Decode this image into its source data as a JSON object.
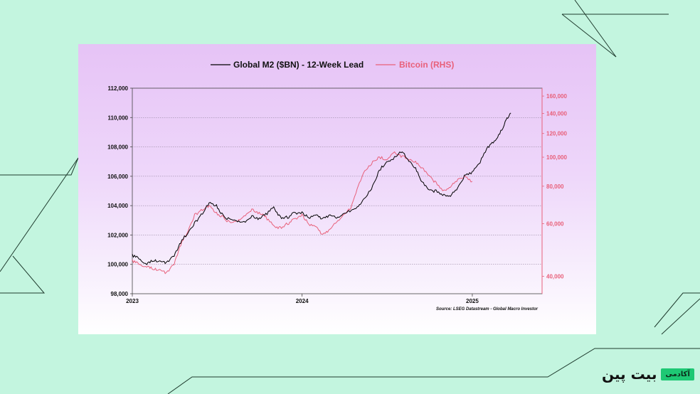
{
  "chart_data": {
    "type": "line",
    "title": "",
    "legend": {
      "position": "top-center",
      "entries": [
        {
          "label": "Global M2 ($BN) - 12-Week Lead",
          "color": "#000000"
        },
        {
          "label": "Bitcoin (RHS)",
          "color": "#e8607a"
        }
      ]
    },
    "y_left": {
      "ylim": [
        98000,
        112000
      ],
      "ticks": [
        "98,000",
        "100,000",
        "102,000",
        "104,000",
        "106,000",
        "108,000",
        "110,000",
        "112,000"
      ],
      "tick_values": [
        98000,
        100000,
        102000,
        104000,
        106000,
        108000,
        110000,
        112000
      ]
    },
    "y_right": {
      "scale": "log",
      "ylim": [
        35000,
        170000
      ],
      "ticks": [
        "40,000",
        "60,000",
        "80,000",
        "100,000",
        "120,000",
        "140,000",
        "160,000"
      ],
      "tick_values": [
        40000,
        60000,
        80000,
        100000,
        120000,
        140000,
        160000
      ],
      "color": "#e8607a"
    },
    "x": {
      "xlim": [
        "2023-01-01",
        "2025-05-31"
      ],
      "tick_labels": [
        "2023",
        "2024",
        "2025"
      ],
      "tick_dates": [
        "2023-01-01",
        "2024-01-01",
        "2025-01-01"
      ]
    },
    "grid": true,
    "series": [
      {
        "name": "Global M2 ($BN) - 12-Week Lead",
        "axis": "left",
        "color": "#000000",
        "points": [
          [
            "2023-01-01",
            100600
          ],
          [
            "2023-01-15",
            100400
          ],
          [
            "2023-02-01",
            100000
          ],
          [
            "2023-02-15",
            100300
          ],
          [
            "2023-03-01",
            100200
          ],
          [
            "2023-03-15",
            100100
          ],
          [
            "2023-04-01",
            100600
          ],
          [
            "2023-04-15",
            101500
          ],
          [
            "2023-05-01",
            102200
          ],
          [
            "2023-05-15",
            102800
          ],
          [
            "2023-06-01",
            103500
          ],
          [
            "2023-06-15",
            104200
          ],
          [
            "2023-07-01",
            104000
          ],
          [
            "2023-07-15",
            103300
          ],
          [
            "2023-08-01",
            103000
          ],
          [
            "2023-08-15",
            102900
          ],
          [
            "2023-09-01",
            102900
          ],
          [
            "2023-09-15",
            103300
          ],
          [
            "2023-10-01",
            103100
          ],
          [
            "2023-10-15",
            103400
          ],
          [
            "2023-11-01",
            103900
          ],
          [
            "2023-11-15",
            103200
          ],
          [
            "2023-12-01",
            103200
          ],
          [
            "2023-12-15",
            103500
          ],
          [
            "2024-01-01",
            103500
          ],
          [
            "2024-01-15",
            103200
          ],
          [
            "2024-02-01",
            103300
          ],
          [
            "2024-02-15",
            103100
          ],
          [
            "2024-03-01",
            103300
          ],
          [
            "2024-03-15",
            103200
          ],
          [
            "2024-04-01",
            103400
          ],
          [
            "2024-04-15",
            103700
          ],
          [
            "2024-05-01",
            103900
          ],
          [
            "2024-05-15",
            104500
          ],
          [
            "2024-06-01",
            105300
          ],
          [
            "2024-06-15",
            106400
          ],
          [
            "2024-07-01",
            107000
          ],
          [
            "2024-07-15",
            107200
          ],
          [
            "2024-08-01",
            107700
          ],
          [
            "2024-08-15",
            107200
          ],
          [
            "2024-09-01",
            106500
          ],
          [
            "2024-09-15",
            105600
          ],
          [
            "2024-10-01",
            105000
          ],
          [
            "2024-10-15",
            105000
          ],
          [
            "2024-11-01",
            104700
          ],
          [
            "2024-11-15",
            104700
          ],
          [
            "2024-12-01",
            105200
          ],
          [
            "2024-12-15",
            106000
          ],
          [
            "2025-01-01",
            106300
          ],
          [
            "2025-01-15",
            106800
          ],
          [
            "2025-02-01",
            107900
          ],
          [
            "2025-02-15",
            108300
          ],
          [
            "2025-03-01",
            108900
          ],
          [
            "2025-03-15",
            109800
          ],
          [
            "2025-03-25",
            110300
          ]
        ]
      },
      {
        "name": "Bitcoin (RHS)",
        "axis": "right",
        "color": "#e8607a",
        "points": [
          [
            "2023-01-01",
            45000
          ],
          [
            "2023-01-15",
            44000
          ],
          [
            "2023-02-01",
            43000
          ],
          [
            "2023-02-15",
            42500
          ],
          [
            "2023-03-01",
            42000
          ],
          [
            "2023-03-15",
            41000
          ],
          [
            "2023-04-01",
            44000
          ],
          [
            "2023-04-15",
            51000
          ],
          [
            "2023-05-01",
            57000
          ],
          [
            "2023-05-15",
            64000
          ],
          [
            "2023-06-01",
            67000
          ],
          [
            "2023-06-15",
            69000
          ],
          [
            "2023-07-01",
            65000
          ],
          [
            "2023-07-15",
            63000
          ],
          [
            "2023-08-01",
            60000
          ],
          [
            "2023-08-15",
            61000
          ],
          [
            "2023-09-01",
            64000
          ],
          [
            "2023-09-15",
            67000
          ],
          [
            "2023-10-01",
            65000
          ],
          [
            "2023-10-15",
            63000
          ],
          [
            "2023-11-01",
            59000
          ],
          [
            "2023-11-15",
            58000
          ],
          [
            "2023-12-01",
            60000
          ],
          [
            "2023-12-15",
            62000
          ],
          [
            "2024-01-01",
            64000
          ],
          [
            "2024-01-15",
            60000
          ],
          [
            "2024-02-01",
            58000
          ],
          [
            "2024-02-15",
            55000
          ],
          [
            "2024-03-01",
            57000
          ],
          [
            "2024-03-15",
            61000
          ],
          [
            "2024-04-01",
            64000
          ],
          [
            "2024-04-15",
            68000
          ],
          [
            "2024-05-01",
            80000
          ],
          [
            "2024-05-15",
            90000
          ],
          [
            "2024-06-01",
            96000
          ],
          [
            "2024-06-15",
            100000
          ],
          [
            "2024-07-01",
            98000
          ],
          [
            "2024-07-15",
            104000
          ],
          [
            "2024-08-01",
            101000
          ],
          [
            "2024-08-15",
            99000
          ],
          [
            "2024-09-01",
            96000
          ],
          [
            "2024-09-15",
            92000
          ],
          [
            "2024-10-01",
            86000
          ],
          [
            "2024-10-15",
            82000
          ],
          [
            "2024-11-01",
            77000
          ],
          [
            "2024-11-15",
            80000
          ],
          [
            "2024-12-01",
            84000
          ],
          [
            "2024-12-15",
            86000
          ],
          [
            "2025-01-01",
            83000
          ]
        ]
      }
    ],
    "annotations": [
      "Source: LSEG Datastream - Global Macro Investor"
    ]
  },
  "legend": {
    "m2_label": "Global M2 ($BN) - 12-Week Lead",
    "btc_label": "Bitcoin (RHS)"
  },
  "source_note": "Source: LSEG Datastream - Global Macro Investor",
  "brand": {
    "name": "بیت پین",
    "tag": "آکادمی"
  },
  "colors": {
    "page_bg": "#c3f5df",
    "m2_line": "#000000",
    "btc_line": "#e8607a",
    "brand_accent": "#1ec874"
  }
}
